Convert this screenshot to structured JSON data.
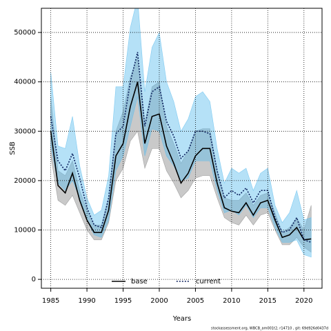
{
  "chart_data": {
    "type": "line",
    "x_label": "Years",
    "y_label": "SSB",
    "footnote": "stockassessment.org, WBCB_am001t2, r14710 , git: 69d926d0437d",
    "x": [
      1985,
      1986,
      1987,
      1988,
      1989,
      1990,
      1991,
      1992,
      1993,
      1994,
      1995,
      1996,
      1997,
      1998,
      1999,
      2000,
      2001,
      2002,
      2003,
      2004,
      2005,
      2006,
      2007,
      2008,
      2009,
      2010,
      2011,
      2012,
      2013,
      2014,
      2015,
      2016,
      2017,
      2018,
      2019,
      2020,
      2021
    ],
    "xlim": [
      1983.7,
      2022.5
    ],
    "xticks": [
      1985,
      1990,
      1995,
      2000,
      2005,
      2010,
      2015,
      2020
    ],
    "ylim": [
      -1800,
      54900
    ],
    "yticks": [
      0,
      10000,
      20000,
      30000,
      40000,
      50000
    ],
    "grid": true,
    "legend": "bottom",
    "series": [
      {
        "name": "base",
        "color": "#000000",
        "band_color": "#888888",
        "dash": false,
        "values": [
          30000,
          19000,
          17500,
          21500,
          16000,
          12000,
          9500,
          9500,
          14000,
          25000,
          27500,
          35000,
          40000,
          27500,
          33000,
          33500,
          27000,
          23500,
          19500,
          21500,
          25000,
          26500,
          26500,
          19500,
          14500,
          13800,
          13500,
          15500,
          13000,
          15500,
          16000,
          12000,
          8500,
          9000,
          10500,
          8000,
          8200
        ],
        "upper": [
          37000,
          22000,
          21000,
          24000,
          18000,
          14000,
          11000,
          11000,
          16500,
          30000,
          34000,
          41000,
          45000,
          31500,
          39000,
          40000,
          31000,
          27500,
          23500,
          26000,
          30000,
          30500,
          30500,
          22000,
          16500,
          16000,
          16000,
          17500,
          15000,
          17000,
          17500,
          13500,
          9500,
          10500,
          12500,
          10000,
          15000
        ],
        "lower": [
          25000,
          16000,
          15000,
          17000,
          13500,
          10000,
          8000,
          8000,
          11500,
          20000,
          22500,
          28000,
          30000,
          22500,
          26500,
          26500,
          22000,
          19500,
          16500,
          18000,
          20500,
          21000,
          21000,
          16500,
          12500,
          11500,
          11000,
          13000,
          11000,
          13000,
          13500,
          10000,
          7000,
          7000,
          8500,
          6500,
          5500
        ]
      },
      {
        "name": "current",
        "color": "#0a1f5c",
        "band_color": "#5bbcee",
        "dash": true,
        "values": [
          33000,
          24000,
          22000,
          25500,
          20500,
          14500,
          11000,
          10500,
          16500,
          29500,
          31000,
          40000,
          46000,
          31000,
          38000,
          39000,
          32000,
          29000,
          24500,
          26000,
          30000,
          30000,
          29500,
          22000,
          16500,
          18000,
          17000,
          18500,
          15500,
          18000,
          18000,
          12500,
          9500,
          10000,
          12500,
          8000,
          7500
        ],
        "upper": [
          42000,
          27000,
          26500,
          33000,
          23000,
          16500,
          13000,
          14000,
          21000,
          39000,
          39000,
          51000,
          57000,
          38000,
          47000,
          50000,
          40000,
          36000,
          30000,
          32500,
          37000,
          38000,
          36000,
          26500,
          19500,
          22500,
          21500,
          22500,
          18000,
          21500,
          22500,
          15000,
          11500,
          13500,
          18000,
          12000,
          12500
        ],
        "lower": [
          27000,
          19500,
          18000,
          20000,
          16500,
          12000,
          9000,
          8500,
          12000,
          22000,
          25000,
          31000,
          37000,
          25000,
          30500,
          30000,
          25000,
          23000,
          20000,
          20500,
          24000,
          24000,
          24000,
          18000,
          13500,
          14000,
          13000,
          15000,
          12500,
          14500,
          14500,
          10500,
          7500,
          7500,
          8000,
          5000,
          4500
        ]
      }
    ]
  }
}
